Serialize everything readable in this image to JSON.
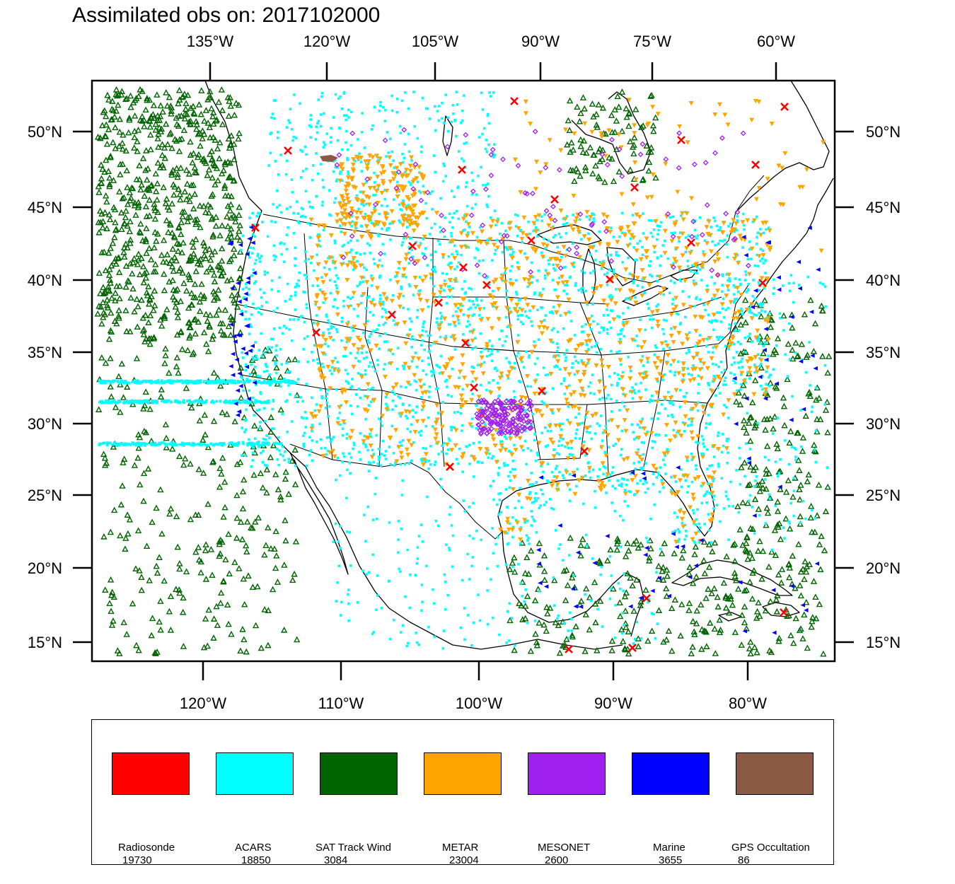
{
  "title": "Assimilated obs on: 2017102000",
  "map": {
    "top_lon_labels": [
      "135°W",
      "120°W",
      "105°W",
      "90°W",
      "75°W",
      "60°W"
    ],
    "bottom_lon_labels": [
      "120°W",
      "110°W",
      "100°W",
      "90°W",
      "80°W"
    ],
    "lat_labels": [
      "50°N",
      "45°N",
      "40°N",
      "35°N",
      "30°N",
      "25°N",
      "20°N",
      "15°N"
    ],
    "lat_range": [
      14,
      53
    ],
    "lon_range": [
      -128,
      -74
    ],
    "ocean_color": "#ffffff",
    "coast_color": "#000000"
  },
  "legend": {
    "items": [
      {
        "label": "Radiosonde",
        "count": "19730",
        "color": "#ff0000",
        "marker": "x-icon"
      },
      {
        "label": "ACARS",
        "count": "18850",
        "color": "#00ffff",
        "marker": "square-dot-icon"
      },
      {
        "label": "SAT Track Wind",
        "count": "3084",
        "color": "#006400",
        "marker": "triangle-up-icon"
      },
      {
        "label": "METAR",
        "count": "23004",
        "color": "#ffa500",
        "marker": "triangle-down-icon"
      },
      {
        "label": "MESONET",
        "count": "2600",
        "color": "#a020f0",
        "marker": "diamond-icon"
      },
      {
        "label": "Marine",
        "count": "3655",
        "color": "#0000ff",
        "marker": "triangle-left-icon"
      },
      {
        "label": "GPS Occultation",
        "count": "86",
        "color": "#8b5a44",
        "marker": "blob-icon"
      }
    ]
  }
}
